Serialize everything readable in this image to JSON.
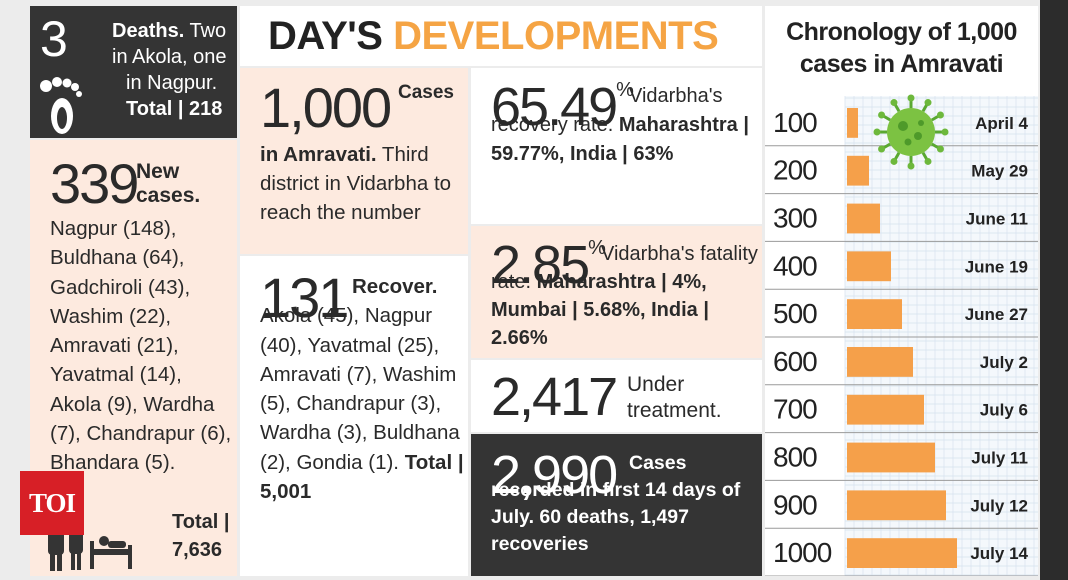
{
  "header": {
    "title_part1": "DAY'S",
    "title_part2": "DEVELOPMENTS"
  },
  "deaths": {
    "number": "3",
    "text_line1": "Deaths.",
    "text_line1b": "Two",
    "text_line2": "in Akola, one",
    "text_line3": "in Nagpur.",
    "total": "Total | 218"
  },
  "new_cases": {
    "number": "339",
    "label_line1": "New",
    "label_line2": "cases.",
    "list": "Nagpur (148), Buldhana (64), Gadchiroli (43), Washim (22), Amravati (21), Yavatmal (14), Akola (9), Wardha (7), Chandrapur (6), Bhandara (5).",
    "total_line1": "Total |",
    "total_line2": "7,636"
  },
  "amravati_1000": {
    "number": "1,000",
    "label": "Cases",
    "bold_text": "in Amravati.",
    "text": "Third district in Vidarbha to reach the number"
  },
  "recovered": {
    "number": "131",
    "label": "Recover.",
    "text": "Akola (45), Nagpur (40), Yavatmal (25), Amravati (7), Washim (5), Chandrapur (3), Wardha (3), Buldhana (2), Gondia (1).",
    "total": "Total | 5,001"
  },
  "recovery_rate": {
    "number": "65.49",
    "percent": "%",
    "text": "Vidarbha's recovery rate.",
    "bold_text": "Maharashtra | 59.77%, India | 63%"
  },
  "fatality_rate": {
    "number": "2.85",
    "percent": "%",
    "text": "Vidarbha's fatality rate.",
    "bold_text": "Maharashtra | 4%, Mumbai | 5.68%, India | 2.66%"
  },
  "under_treatment": {
    "number": "2,417",
    "text_line1": "Under",
    "text_line2": "treatment."
  },
  "july": {
    "number": "2,990",
    "text": "Cases recorded in first 14 days of July. 60 deaths, 1,497 recoveries"
  },
  "logo": {
    "text": "TOI"
  },
  "colors": {
    "accent": "#f5a444",
    "bar": "#f5a04a",
    "dark": "#343434",
    "peach": "#fdeadf",
    "virus": "#7cc242"
  },
  "chart_data": {
    "type": "bar",
    "orientation": "horizontal",
    "title_line1": "Chronology of 1,000",
    "title_line2": "cases in Amravati",
    "categories": [
      "100",
      "200",
      "300",
      "400",
      "500",
      "600",
      "700",
      "800",
      "900",
      "1000"
    ],
    "values": [
      100,
      200,
      300,
      400,
      500,
      600,
      700,
      800,
      900,
      1000
    ],
    "dates": [
      "April 4",
      "May 29",
      "June 11",
      "June 19",
      "June 27",
      "July 2",
      "July 6",
      "July 11",
      "July 12",
      "July 14"
    ],
    "grid": true
  }
}
